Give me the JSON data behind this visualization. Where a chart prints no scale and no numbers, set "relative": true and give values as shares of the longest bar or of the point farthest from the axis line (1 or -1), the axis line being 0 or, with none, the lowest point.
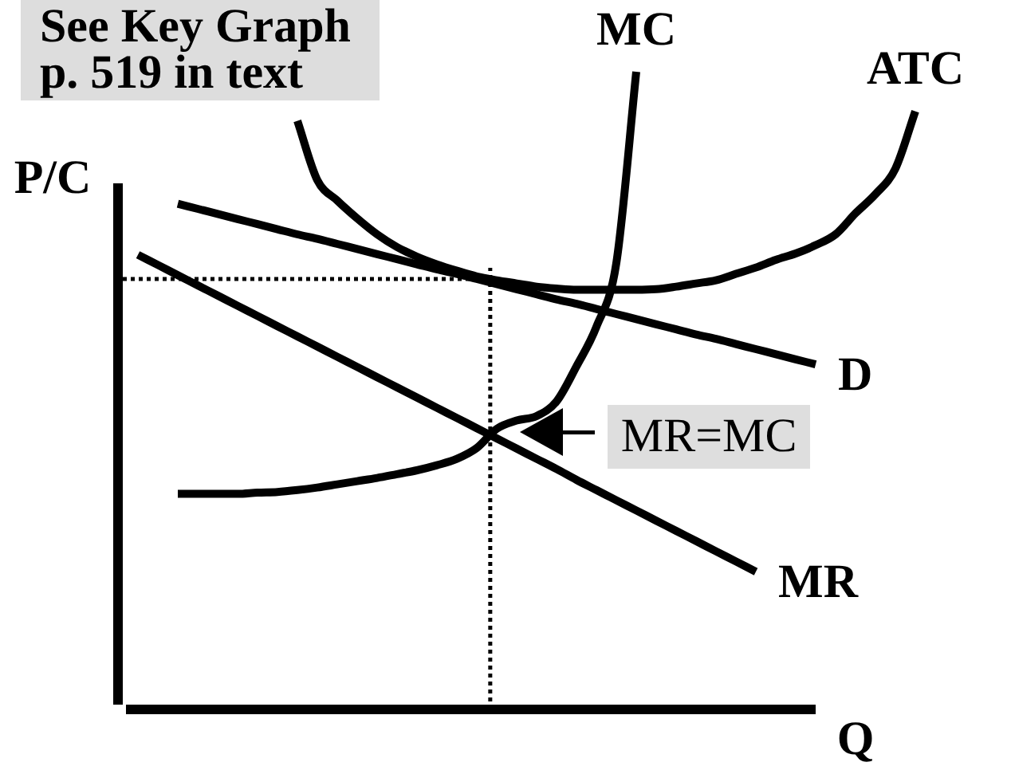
{
  "chart_data": {
    "type": "line",
    "relative": true,
    "xlabel": "Q",
    "ylabel": "P/C",
    "categories": [
      null,
      null,
      null,
      null,
      null,
      null,
      null,
      null,
      null,
      null,
      null,
      null,
      null,
      null,
      null,
      null,
      null,
      null,
      null,
      null,
      null,
      null,
      null,
      null,
      null,
      null,
      null,
      null,
      null,
      null,
      null,
      null,
      null,
      null,
      null,
      null,
      null,
      null,
      null,
      null,
      null
    ],
    "series": [
      {
        "name": "MC",
        "color": "#000000",
        "values": [
          null,
          null,
          null,
          0.338,
          0.338,
          0.338,
          0.338,
          0.34,
          0.341,
          0.344,
          0.348,
          0.353,
          0.358,
          0.363,
          0.369,
          0.375,
          0.383,
          0.393,
          0.41,
          0.44,
          0.453,
          0.46,
          0.483,
          0.538,
          0.6,
          0.7,
          1.0,
          null,
          null,
          null,
          null,
          null,
          null,
          null,
          null,
          null,
          null,
          null,
          null,
          null,
          null
        ]
      },
      {
        "name": "ATC",
        "color": "#000000",
        "values": [
          null,
          null,
          null,
          null,
          null,
          null,
          null,
          null,
          null,
          0.923,
          0.83,
          0.798,
          0.77,
          0.745,
          0.725,
          0.71,
          0.698,
          0.688,
          0.679,
          0.673,
          0.668,
          0.663,
          0.66,
          0.658,
          0.658,
          0.658,
          0.658,
          0.659,
          0.663,
          0.668,
          0.673,
          0.683,
          0.693,
          0.705,
          0.715,
          0.728,
          0.745,
          0.778,
          0.808,
          0.848,
          0.938
        ]
      },
      {
        "name": "D",
        "color": "#000000",
        "values": [
          null,
          null,
          null,
          0.793,
          0.785,
          0.777,
          0.769,
          0.761,
          0.753,
          0.745,
          0.738,
          0.73,
          0.722,
          0.714,
          0.706,
          0.698,
          0.69,
          0.683,
          0.675,
          0.667,
          0.659,
          0.651,
          0.643,
          0.636,
          0.628,
          0.62,
          0.612,
          0.604,
          0.596,
          0.588,
          0.581,
          0.573,
          0.565,
          0.557,
          0.549,
          0.541,
          null,
          null,
          null,
          null,
          null
        ]
      },
      {
        "name": "MR",
        "color": "#000000",
        "values": [
          null,
          0.713,
          0.697,
          0.681,
          0.665,
          0.649,
          0.633,
          0.617,
          0.601,
          0.585,
          0.569,
          0.553,
          0.537,
          0.521,
          0.505,
          0.489,
          0.473,
          0.457,
          0.441,
          0.425,
          0.409,
          0.393,
          0.377,
          0.36,
          0.344,
          0.328,
          0.312,
          0.296,
          0.28,
          0.264,
          0.248,
          0.232,
          0.216,
          null,
          null,
          null,
          null,
          null,
          null,
          null,
          null
        ]
      }
    ],
    "ref_lines": [
      {
        "axis": "y",
        "value": 0.675,
        "line_style": "dotted"
      }
    ],
    "annotations": [
      "See Key Graph\np. 519 in text",
      "MR=MC"
    ]
  }
}
